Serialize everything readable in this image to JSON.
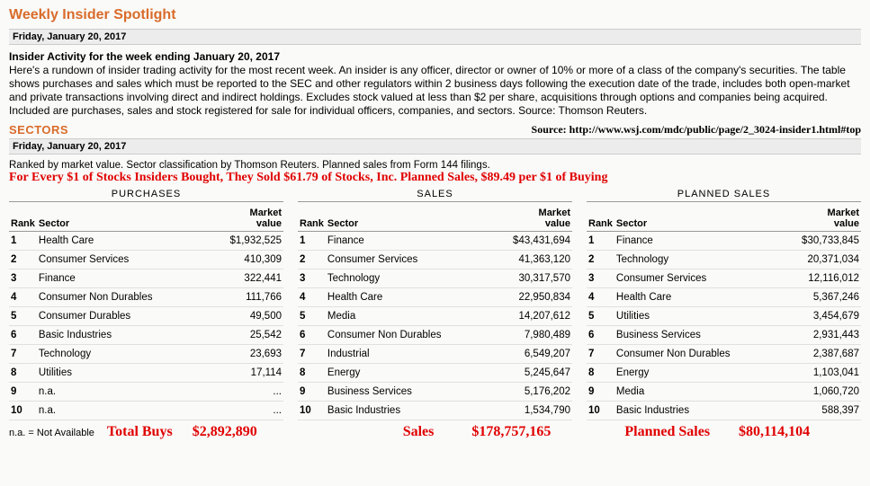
{
  "title": "Weekly Insider Spotlight",
  "date": "Friday, January 20, 2017",
  "subhead": "Insider Activity for the week ending January 20, 2017",
  "paragraph": "Here's a rundown of insider trading activity for the most recent week. An insider is any officer, director or owner of 10% or more of a class of the company's securities. The table shows purchases and sales which must be reported to the SEC and other regulators within 2 business days following the execution date of the trade, includes both open-market and private transactions involving direct and indirect holdings. Excludes stock valued at less than $2 per share, acquisitions through options and companies being acquired. Included are purchases, sales and stock registered for sale for individual officers, companies, and sectors. Source: Thomson Reuters.",
  "sectors_label": "SECTORS",
  "source_url": "Source: http://www.wsj.com/mdc/public/page/2_3024-insider1.html#top",
  "date2": "Friday, January 20, 2017",
  "ranked_note": "Ranked by market value. Sector classification by Thomson Reuters. Planned sales from Form 144 filings.",
  "red_line": "For Every $1 of Stocks Insiders Bought, They Sold $61.79 of Stocks, Inc. Planned Sales, $89.49 per $1 of Buying",
  "col_rank": "Rank",
  "col_sector": "Sector",
  "col_value": "Market value",
  "tables": [
    {
      "title": "PURCHASES",
      "rows": [
        {
          "rank": "1",
          "sector": "Health Care",
          "value": "$1,932,525"
        },
        {
          "rank": "2",
          "sector": "Consumer Services",
          "value": "410,309"
        },
        {
          "rank": "3",
          "sector": "Finance",
          "value": "322,441"
        },
        {
          "rank": "4",
          "sector": "Consumer Non Durables",
          "value": "111,766"
        },
        {
          "rank": "5",
          "sector": "Consumer Durables",
          "value": "49,500"
        },
        {
          "rank": "6",
          "sector": "Basic Industries",
          "value": "25,542"
        },
        {
          "rank": "7",
          "sector": "Technology",
          "value": "23,693"
        },
        {
          "rank": "8",
          "sector": "Utilities",
          "value": "17,114"
        },
        {
          "rank": "9",
          "sector": "n.a.",
          "value": "..."
        },
        {
          "rank": "10",
          "sector": "n.a.",
          "value": "..."
        }
      ]
    },
    {
      "title": "SALES",
      "rows": [
        {
          "rank": "1",
          "sector": "Finance",
          "value": "$43,431,694"
        },
        {
          "rank": "2",
          "sector": "Consumer Services",
          "value": "41,363,120"
        },
        {
          "rank": "3",
          "sector": "Technology",
          "value": "30,317,570"
        },
        {
          "rank": "4",
          "sector": "Health Care",
          "value": "22,950,834"
        },
        {
          "rank": "5",
          "sector": "Media",
          "value": "14,207,612"
        },
        {
          "rank": "6",
          "sector": "Consumer Non Durables",
          "value": "7,980,489"
        },
        {
          "rank": "7",
          "sector": "Industrial",
          "value": "6,549,207"
        },
        {
          "rank": "8",
          "sector": "Energy",
          "value": "5,245,647"
        },
        {
          "rank": "9",
          "sector": "Business Services",
          "value": "5,176,202"
        },
        {
          "rank": "10",
          "sector": "Basic Industries",
          "value": "1,534,790"
        }
      ]
    },
    {
      "title": "PLANNED SALES",
      "rows": [
        {
          "rank": "1",
          "sector": "Finance",
          "value": "$30,733,845"
        },
        {
          "rank": "2",
          "sector": "Technology",
          "value": "20,371,034"
        },
        {
          "rank": "3",
          "sector": "Consumer Services",
          "value": "12,116,012"
        },
        {
          "rank": "4",
          "sector": "Health Care",
          "value": "5,367,246"
        },
        {
          "rank": "5",
          "sector": "Utilities",
          "value": "3,454,679"
        },
        {
          "rank": "6",
          "sector": "Business Services",
          "value": "2,931,443"
        },
        {
          "rank": "7",
          "sector": "Consumer Non Durables",
          "value": "2,387,687"
        },
        {
          "rank": "8",
          "sector": "Energy",
          "value": "1,103,041"
        },
        {
          "rank": "9",
          "sector": "Media",
          "value": "1,060,720"
        },
        {
          "rank": "10",
          "sector": "Basic Industries",
          "value": "588,397"
        }
      ]
    }
  ],
  "na_note": "n.a. = Not Available",
  "totals": {
    "buys_label": "Total Buys",
    "buys_value": "$2,892,890",
    "sales_label": "Sales",
    "sales_value": "$178,757,165",
    "planned_label": "Planned Sales",
    "planned_value": "$80,114,104"
  },
  "colors": {
    "accent_orange": "#d96b2a",
    "accent_red": "#e00000",
    "bg": "#fafaf8",
    "grid": "#e0e0e0"
  }
}
